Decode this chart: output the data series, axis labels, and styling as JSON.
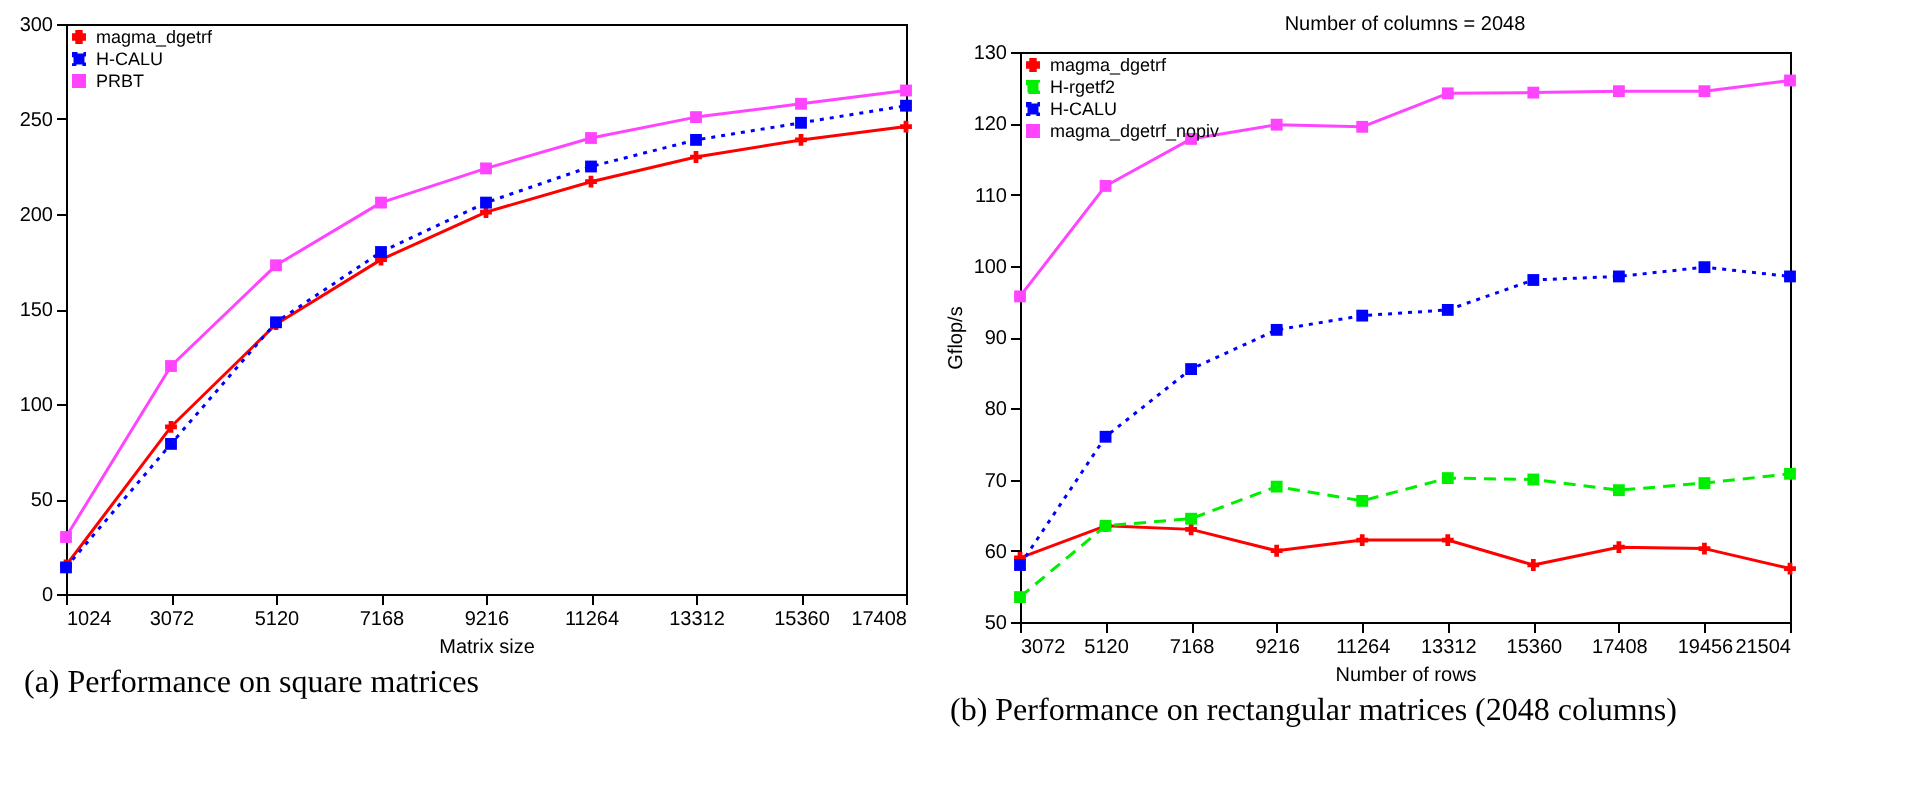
{
  "chart_data": [
    {
      "type": "line",
      "xlabel": "Matrix size",
      "x": [
        1024,
        3072,
        5120,
        7168,
        9216,
        11264,
        13312,
        15360,
        17408
      ],
      "xlim": [
        1024,
        17408
      ],
      "xticks": [
        1024,
        3072,
        5120,
        7168,
        9216,
        11264,
        13312,
        15360,
        17408
      ],
      "ylim": [
        0,
        300
      ],
      "yticks": [
        0,
        50,
        100,
        150,
        200,
        250,
        300
      ],
      "grid": false,
      "legend": "top left",
      "annotations": [
        "(a) Performance on square matrices"
      ],
      "series": [
        {
          "name": "magma_dgetrf",
          "color": "#ff0000",
          "marker": "cross",
          "line_style": "solid",
          "values": [
            15,
            88,
            142,
            176,
            201,
            217,
            230,
            239,
            246
          ]
        },
        {
          "name": "H-CALU",
          "color": "#0000ff",
          "marker": "square",
          "line_style": "dotted",
          "values": [
            14,
            79,
            143,
            180,
            206,
            225,
            239,
            248,
            257
          ]
        },
        {
          "name": "PRBT",
          "color": "#ff44ff",
          "marker": "square",
          "line_style": "solid",
          "values": [
            30,
            120,
            173,
            206,
            224,
            240,
            251,
            258,
            265
          ]
        }
      ]
    },
    {
      "type": "line",
      "title": "Number of columns = 2048",
      "xlabel": "Number of rows",
      "ylabel": "Gflop/s",
      "x": [
        3072,
        5120,
        7168,
        9216,
        11264,
        13312,
        15360,
        17408,
        19456,
        21504
      ],
      "xlim": [
        3072,
        21504
      ],
      "xticks": [
        3072,
        5120,
        7168,
        9216,
        11264,
        13312,
        15360,
        17408,
        19456,
        21504
      ],
      "ylim": [
        50,
        130
      ],
      "yticks": [
        50,
        60,
        70,
        80,
        90,
        100,
        110,
        120,
        130
      ],
      "grid": false,
      "legend": "top left",
      "annotations": [
        "(b) Performance on rectangular matrices (2048 columns)"
      ],
      "series": [
        {
          "name": "magma_dgetrf",
          "color": "#ff0000",
          "marker": "cross",
          "line_style": "solid",
          "values": [
            59,
            63.5,
            63,
            60,
            61.5,
            61.5,
            58,
            60.5,
            60.3,
            57.5
          ]
        },
        {
          "name": "H-rgetf2",
          "color": "#00ee00",
          "marker": "square",
          "line_style": "dashed",
          "values": [
            53.5,
            63.5,
            64.5,
            69,
            67,
            70.2,
            70,
            68.5,
            69.5,
            70.8
          ]
        },
        {
          "name": "H-CALU",
          "color": "#0000ff",
          "marker": "square",
          "line_style": "dotted",
          "values": [
            58,
            76,
            85.5,
            91,
            93,
            93.8,
            98,
            98.5,
            99.8,
            98.5
          ]
        },
        {
          "name": "magma_dgetrf_nopiv",
          "color": "#ff44ff",
          "marker": "square",
          "line_style": "solid",
          "values": [
            95.7,
            111.2,
            117.8,
            119.8,
            119.5,
            124.2,
            124.3,
            124.5,
            124.5,
            126
          ]
        }
      ]
    }
  ]
}
